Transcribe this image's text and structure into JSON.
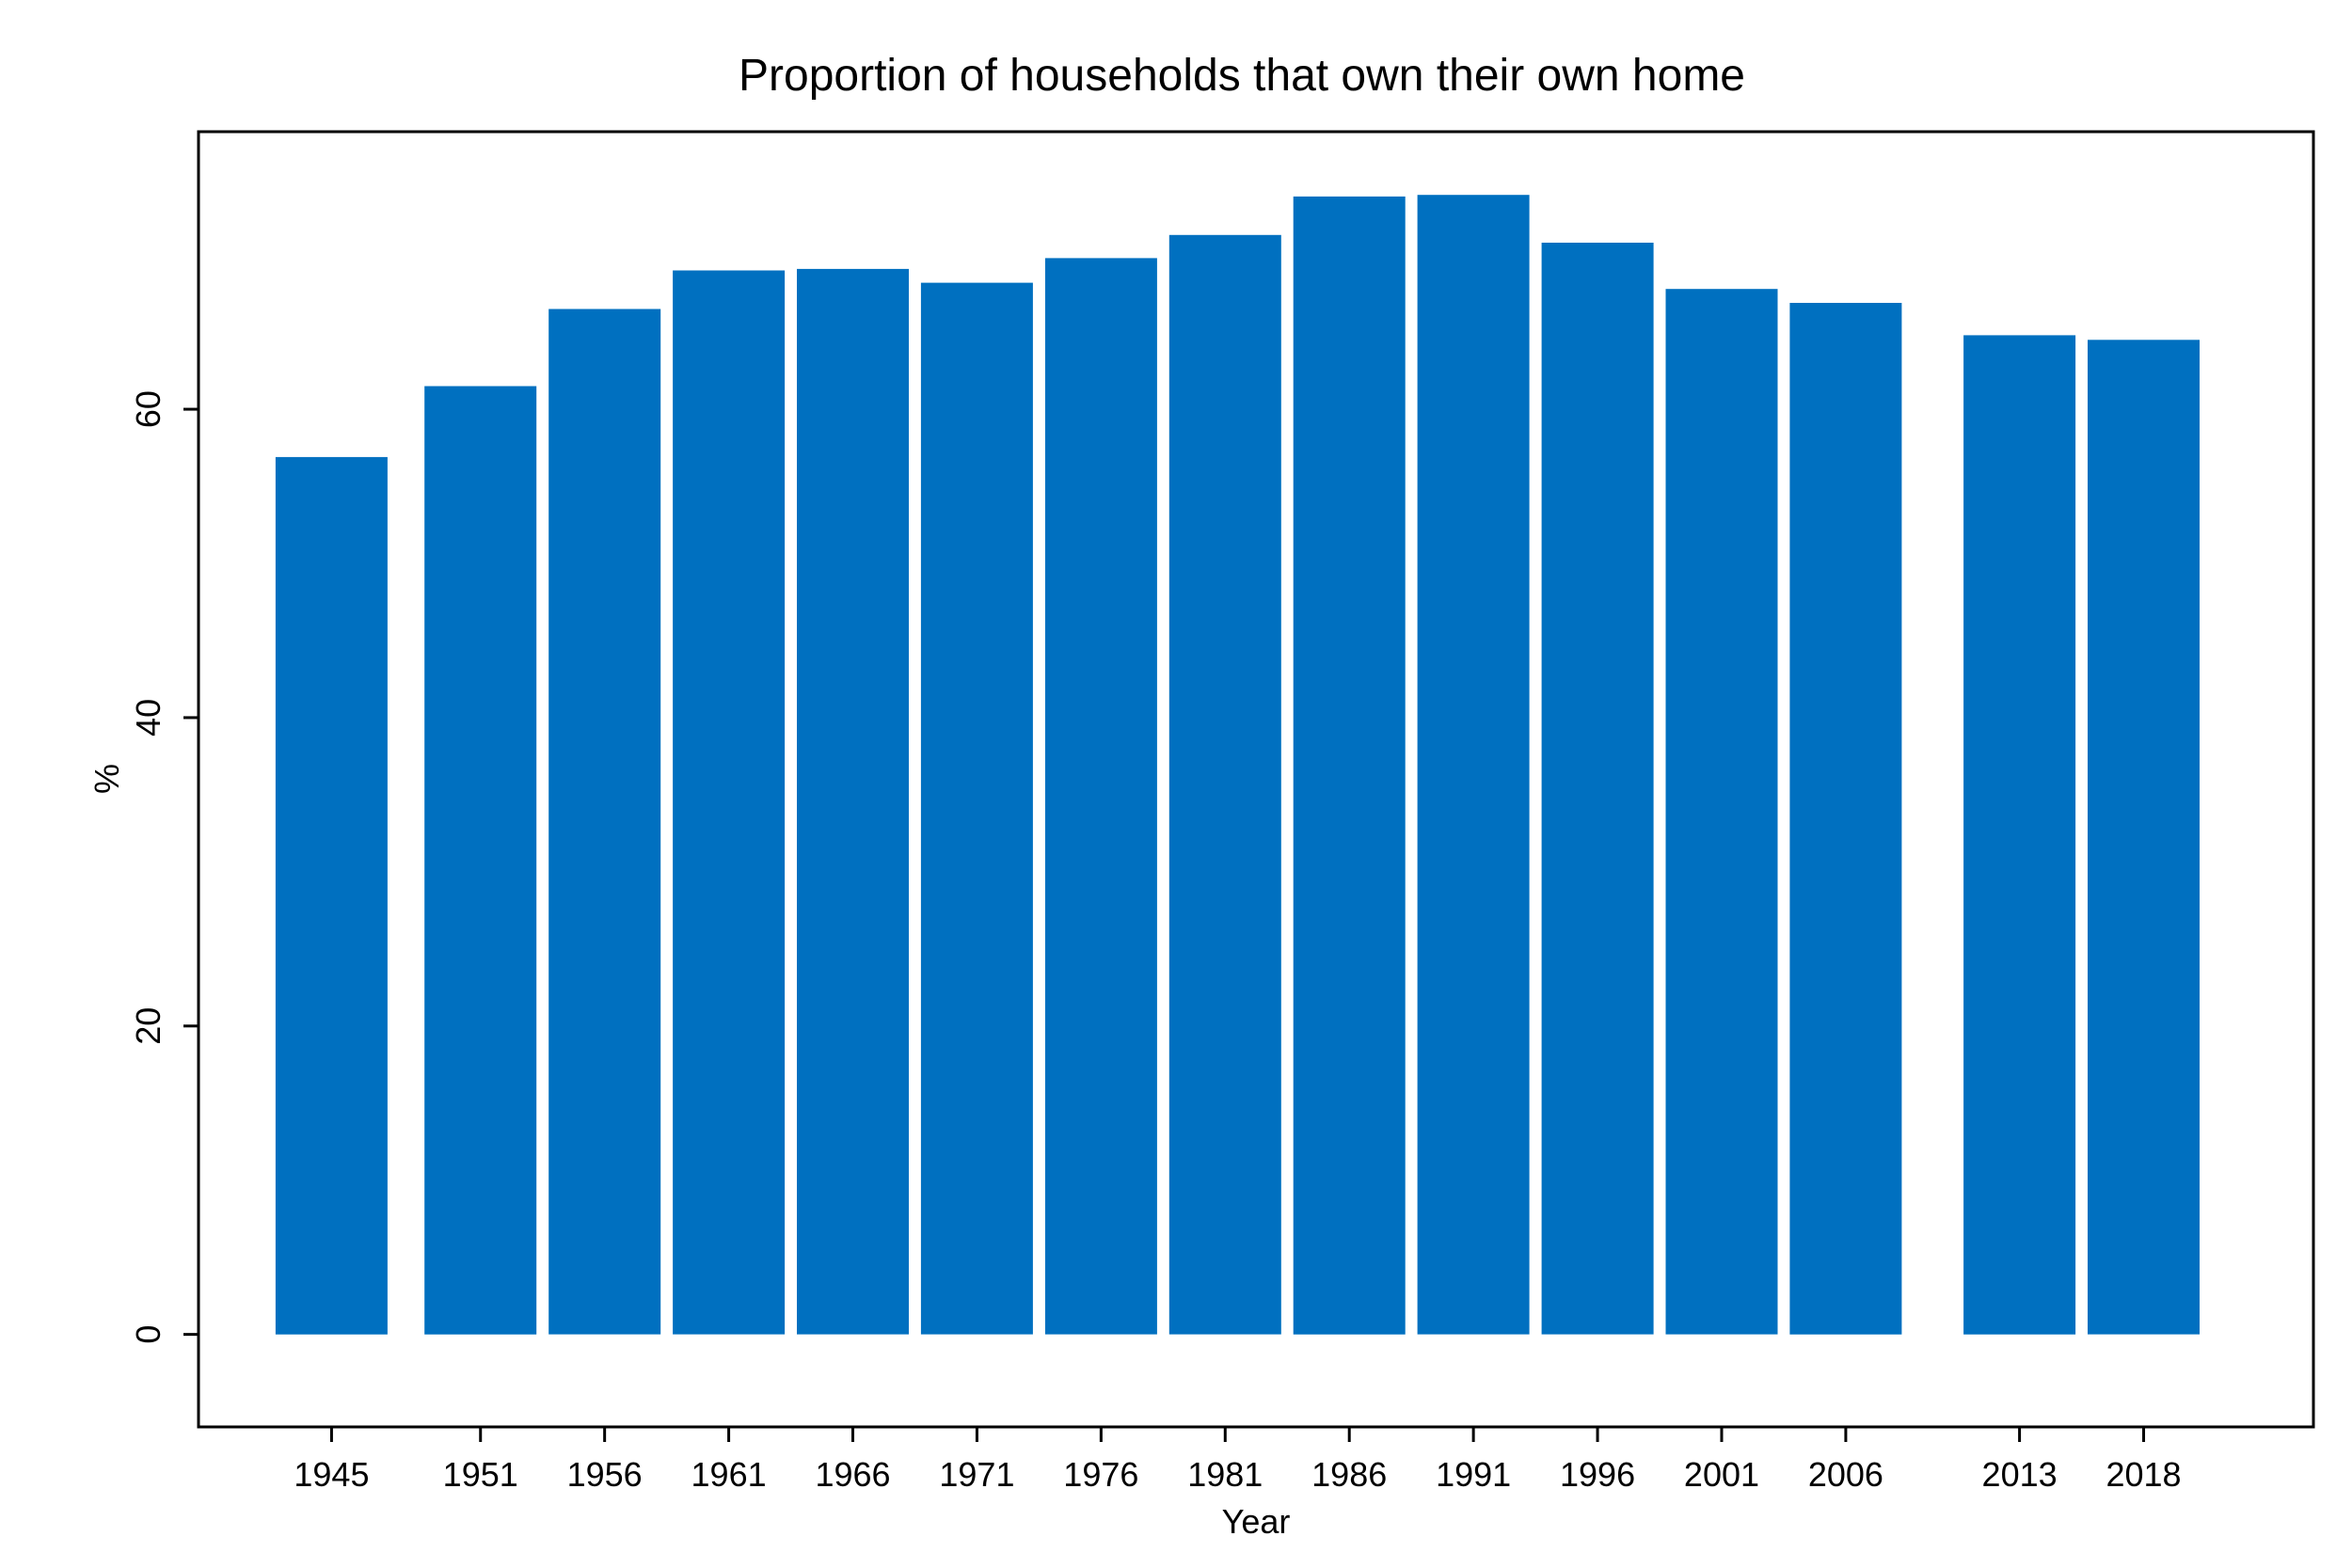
{
  "chart_data": {
    "type": "bar",
    "title": "Proportion of households that own their own home",
    "xlabel": "Year",
    "ylabel": "%",
    "ylim": [
      -6,
      78
    ],
    "yticks": [
      0,
      20,
      40,
      60
    ],
    "x": [
      1945,
      1951,
      1956,
      1961,
      1966,
      1971,
      1976,
      1981,
      1986,
      1991,
      1996,
      2001,
      2006,
      2013,
      2018
    ],
    "categories": [
      "1945",
      "1951",
      "1956",
      "1961",
      "1966",
      "1971",
      "1976",
      "1981",
      "1986",
      "1991",
      "1996",
      "2001",
      "2006",
      "2013",
      "2018"
    ],
    "values": [
      56.9,
      61.5,
      66.5,
      69.0,
      69.1,
      68.2,
      69.8,
      71.3,
      73.8,
      73.9,
      70.8,
      67.8,
      66.9,
      64.8,
      64.5
    ],
    "colors": {
      "bar": "#0070C0",
      "axis": "#000000",
      "background": "#FFFFFF"
    },
    "grid": false,
    "legend": "none"
  }
}
